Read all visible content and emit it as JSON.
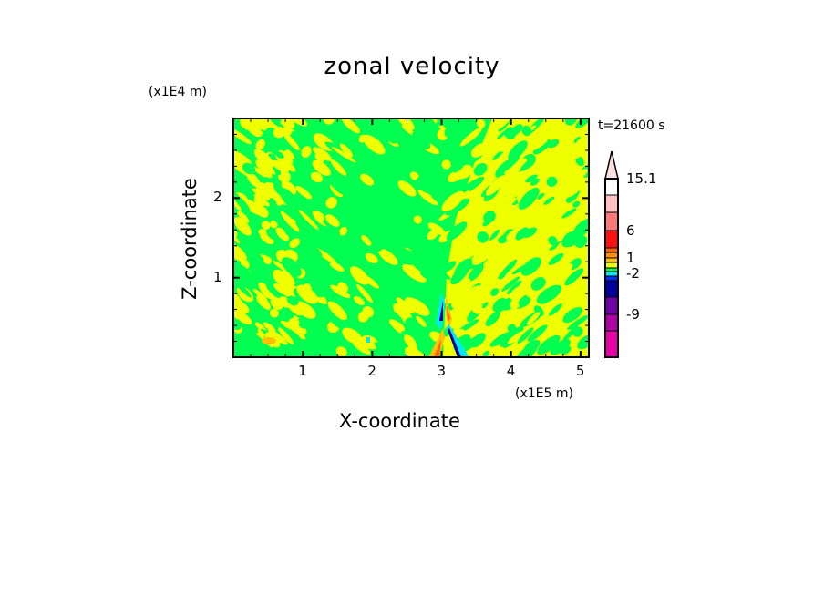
{
  "chart_data": {
    "type": "heatmap",
    "title": "zonal velocity",
    "xlabel": "X-coordinate",
    "ylabel": "Z-coordinate",
    "x_unit": "(x1E5 m)",
    "y_unit": "(x1E4 m)",
    "time_label": "t=21600 s",
    "xlim": [
      0,
      5.12
    ],
    "ylim": [
      0,
      3.0
    ],
    "xticks": [
      "1",
      "2",
      "3",
      "4",
      "5"
    ],
    "xtick_values": [
      1,
      2,
      3,
      4,
      5
    ],
    "yticks": [
      "1",
      "2"
    ],
    "ytick_values": [
      1,
      2
    ],
    "colorbar": {
      "labels": [
        "15.1",
        "6",
        "1",
        "-2",
        "-9"
      ],
      "colors": [
        "#e800a8",
        "#b000a8",
        "#7000a8",
        "#0000a0",
        "#0030ff",
        "#00e8f0",
        "#00ff50",
        "#f0ff00",
        "#ffc000",
        "#ff9000",
        "#ff6000",
        "#ff1010",
        "#ff7878",
        "#ffc0c0",
        "#ffe0e0"
      ]
    },
    "dominant_colors": {
      "background": "#00ff50",
      "patches": "#f0ff00"
    }
  }
}
